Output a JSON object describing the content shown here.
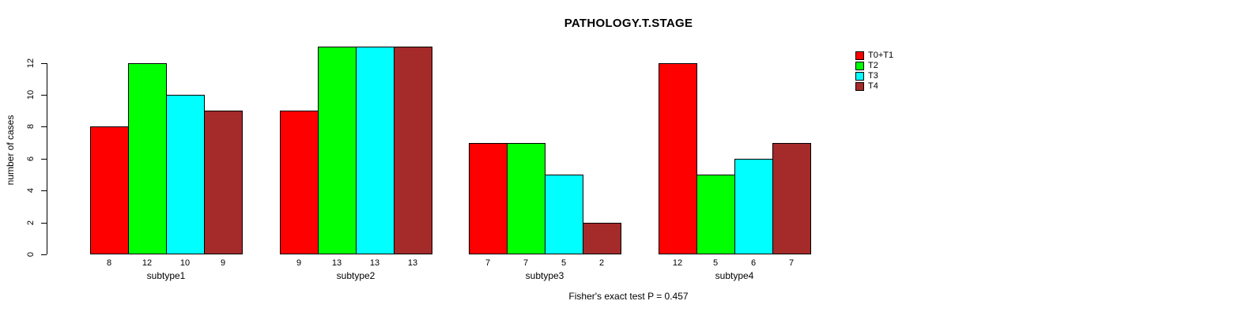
{
  "title": "PATHOLOGY.T.STAGE",
  "annotation": "Fisher's exact test P = 0.457",
  "chart_data": {
    "type": "bar",
    "title": "PATHOLOGY.T.STAGE",
    "categories": [
      "subtype1",
      "subtype2",
      "subtype3",
      "subtype4"
    ],
    "series": [
      {
        "name": "T0+T1",
        "color": "#FF0000",
        "values": [
          8,
          9,
          7,
          12
        ]
      },
      {
        "name": "T2",
        "color": "#00FF00",
        "values": [
          12,
          13,
          7,
          5
        ]
      },
      {
        "name": "T3",
        "color": "#00FFFF",
        "values": [
          10,
          13,
          5,
          6
        ]
      },
      {
        "name": "T4",
        "color": "#A52A2A",
        "values": [
          9,
          13,
          2,
          7
        ]
      }
    ],
    "xlabel": "",
    "ylabel": "number of cases",
    "yticks": [
      0,
      2,
      4,
      6,
      8,
      10,
      12
    ],
    "ylim": [
      0,
      12
    ],
    "bar_value_labels": true,
    "grid": false,
    "legend_position": "top-right",
    "annotation": "Fisher's exact test P = 0.457"
  }
}
